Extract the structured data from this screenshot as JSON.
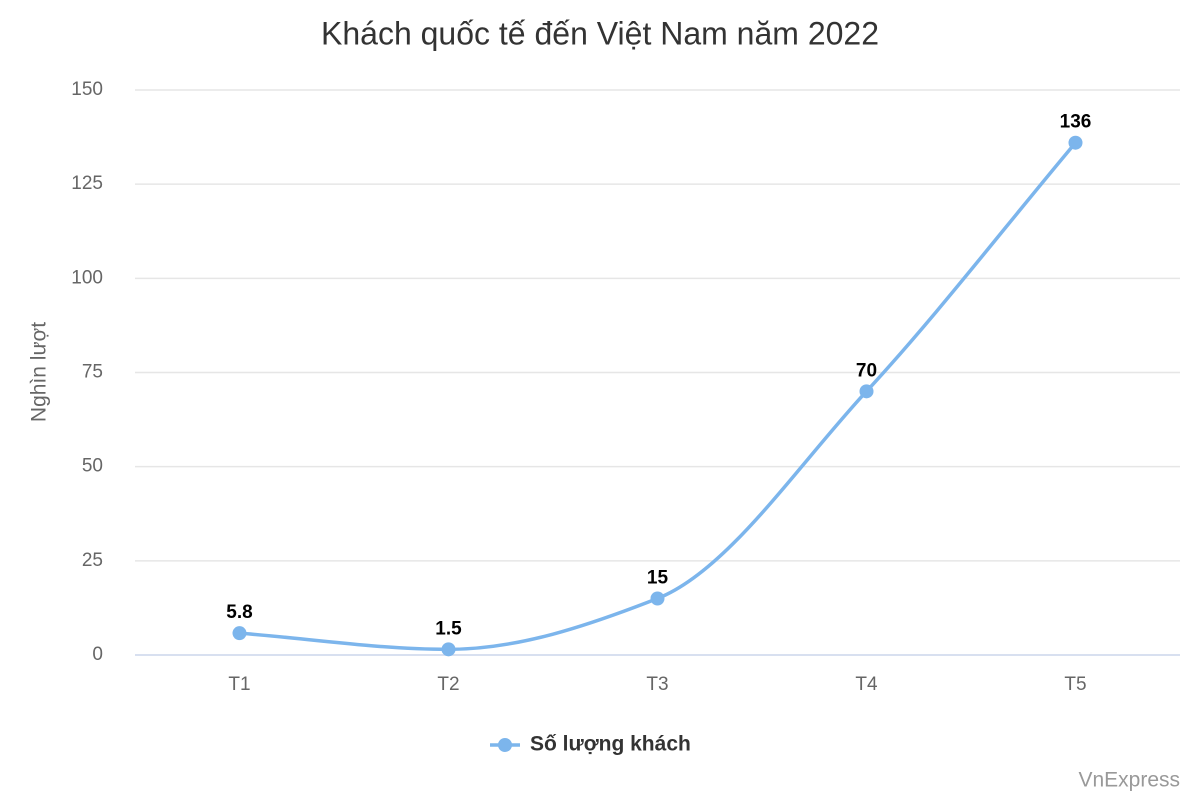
{
  "chart_data": {
    "type": "line",
    "title": "Khách quốc tế đến Việt Nam năm 2022",
    "y_label": "Nghìn lượt",
    "categories": [
      "T1",
      "T2",
      "T3",
      "T4",
      "T5"
    ],
    "series": [
      {
        "name": "Số lượng khách",
        "color": "#7cb5ec",
        "values": [
          5.8,
          1.5,
          15,
          70,
          136
        ]
      }
    ],
    "ylim": [
      0,
      150
    ],
    "yticks": [
      0,
      25,
      50,
      75,
      100,
      125,
      150
    ],
    "grid": true,
    "legend": "bottom",
    "credit": "VnExpress"
  }
}
